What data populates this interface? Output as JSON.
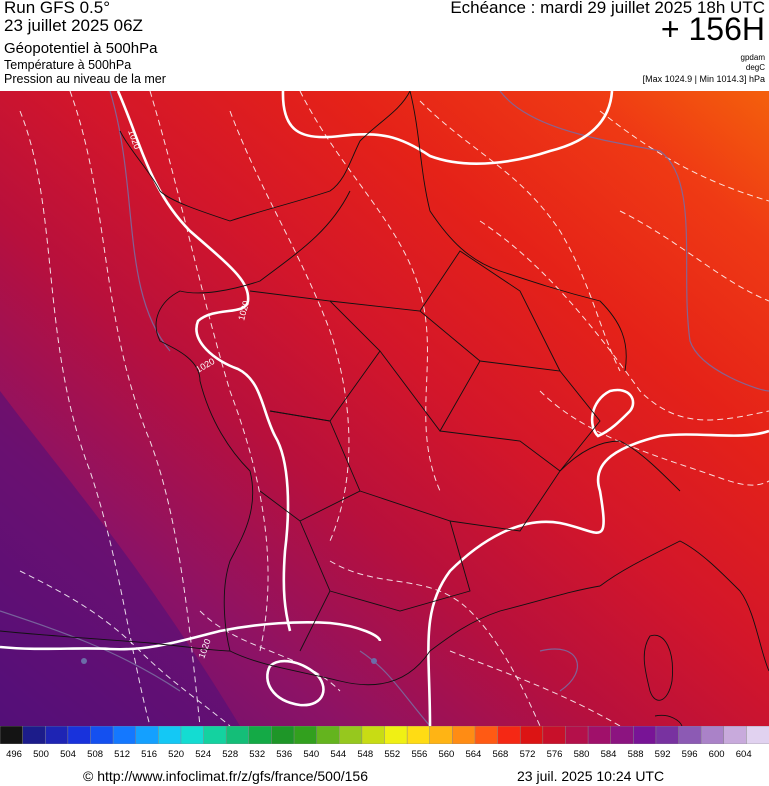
{
  "header": {
    "run": "Run GFS 0.5°",
    "run_date": "23 juillet 2025 06Z",
    "layers": [
      "Géopotentiel à 500hPa",
      "Température à 500hPa",
      "Pression au niveau de la mer"
    ],
    "valid_time": "Echéance : mardi 29 juillet 2025 18h UTC",
    "lead_time": "+ 156H",
    "units": [
      "gpdam",
      "degC"
    ],
    "range": "[Max 1024.9 | Min 1014.3] hPa"
  },
  "map": {
    "isobar_labels": [
      "1020",
      "1020",
      "1020",
      "1020"
    ],
    "colors": {
      "purple": "#5a1078",
      "plum": "#9a1266",
      "crimson": "#c8102a",
      "red": "#e01e18",
      "bright_red": "#ef3514",
      "orange": "#f25a0c"
    }
  },
  "scale": {
    "values": [
      "496",
      "500",
      "504",
      "508",
      "512",
      "516",
      "520",
      "524",
      "528",
      "532",
      "536",
      "540",
      "544",
      "548",
      "552",
      "556",
      "560",
      "564",
      "568",
      "572",
      "576",
      "580",
      "584",
      "588",
      "592",
      "596",
      "600",
      "604"
    ],
    "colors": [
      "#141414",
      "#1c1c8a",
      "#1e24b4",
      "#1832dc",
      "#1450f0",
      "#1478ff",
      "#14a0ff",
      "#14c8f5",
      "#14dcd2",
      "#14d2a0",
      "#14be78",
      "#14aa46",
      "#1e9628",
      "#32a01e",
      "#64b41e",
      "#96c81e",
      "#c8dc14",
      "#f0f014",
      "#ffdc14",
      "#ffb414",
      "#ff8c14",
      "#ff5a14",
      "#f52814",
      "#dc1414",
      "#c8102a",
      "#b4104a",
      "#a0106a",
      "#8c1480",
      "#781496",
      "#7832a0",
      "#8c5ab4",
      "#aa82c8",
      "#c8aadc",
      "#e1d2f0"
    ]
  },
  "footer": {
    "url": "© http://www.infoclimat.fr/z/gfs/france/500/156",
    "generated": "23 juil. 2025 10:24 UTC"
  }
}
